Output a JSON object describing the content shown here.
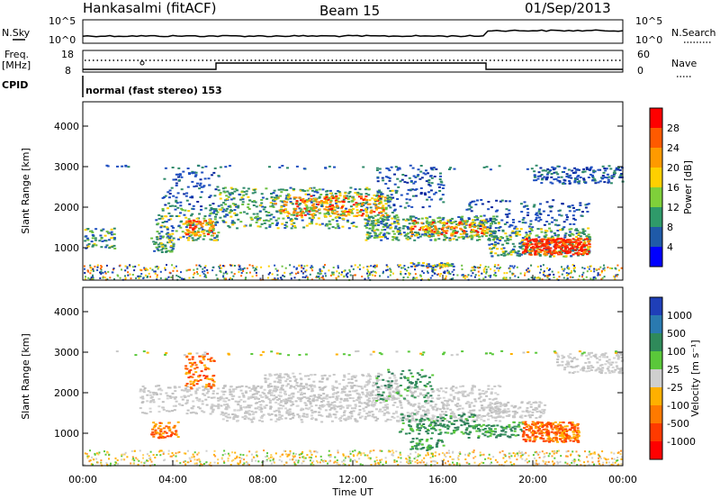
{
  "header": {
    "station": "Hankasalmi (fitACF)",
    "beam": "Beam 15",
    "date": "01/Sep/2013"
  },
  "side_labels": {
    "nsky": "N.Sky",
    "nsearch": "N.Search",
    "freq_line1": "Freq.",
    "freq_line2": "[MHz]",
    "nave": "Nave",
    "cpid": "CPID",
    "nsky_ticks": [
      "10^5",
      "10^0"
    ],
    "nsearch_ticks": [
      "10^5",
      "10^0"
    ],
    "freq_ticks": [
      "18",
      "8"
    ],
    "nave_ticks": [
      "60",
      "0"
    ],
    "cpid_text": "normal (fast stereo) 153"
  },
  "chart_data": [
    {
      "type": "heatmap",
      "name": "power",
      "ylabel": "Slant Range [km]",
      "xlabel": "Time UT",
      "x_ticks": [
        "00:00",
        "04:00",
        "08:00",
        "12:00",
        "16:00",
        "20:00",
        "00:00"
      ],
      "x_range_hours": [
        0,
        24
      ],
      "y_ticks": [
        1000,
        2000,
        3000,
        4000
      ],
      "ylim": [
        200,
        4600
      ],
      "colorbar_label": "Power [dB]",
      "colorbar_ticks": [
        "28",
        "24",
        "20",
        "16",
        "12",
        "8",
        "4"
      ],
      "colorbar_colors": [
        "#ff0000",
        "#ff5a00",
        "#ff9a00",
        "#ffd000",
        "#7fd03a",
        "#2f9a6a",
        "#1f5aa8",
        "#0000ff"
      ],
      "features": [
        {
          "t": [
            4.5,
            5.8
          ],
          "r": [
            1300,
            1700
          ],
          "level": "high"
        },
        {
          "t": [
            8.5,
            13.5
          ],
          "r": [
            1800,
            2300
          ],
          "level": "high"
        },
        {
          "t": [
            14.5,
            18.0
          ],
          "r": [
            1300,
            1700
          ],
          "level": "medium"
        },
        {
          "t": [
            19.5,
            22.5
          ],
          "r": [
            850,
            1250
          ],
          "level": "very high"
        }
      ]
    },
    {
      "type": "heatmap",
      "name": "velocity",
      "ylabel": "Slant Range [km]",
      "xlabel": "Time UT",
      "x_ticks": [
        "00:00",
        "04:00",
        "08:00",
        "12:00",
        "16:00",
        "20:00",
        "00:00"
      ],
      "x_range_hours": [
        0,
        24
      ],
      "y_ticks": [
        1000,
        2000,
        3000,
        4000
      ],
      "ylim": [
        200,
        4600
      ],
      "colorbar_label": "Velocity [m s⁻¹]",
      "colorbar_ticks": [
        "1000",
        "500",
        "100",
        "25",
        "-25",
        "-100",
        "-500",
        "-1000"
      ],
      "colorbar_colors": [
        "#1f3fb8",
        "#2a7ab0",
        "#2f8a5a",
        "#5ac83a",
        "#cfcfcf",
        "#ffb000",
        "#ff7a00",
        "#ff3a00",
        "#ff0000"
      ],
      "features": [
        {
          "t": [
            4.5,
            5.8
          ],
          "r": [
            2100,
            3000
          ],
          "level": "-500"
        },
        {
          "t": [
            3.0,
            4.2
          ],
          "r": [
            900,
            1300
          ],
          "level": "-100"
        },
        {
          "t": [
            8.0,
            18.0
          ],
          "r": [
            1300,
            2200
          ],
          "level": "ground scatter"
        },
        {
          "t": [
            19.5,
            22.0
          ],
          "r": [
            800,
            1300
          ],
          "level": "-500"
        }
      ]
    }
  ],
  "colors": {
    "ground_scatter": "#c8c8c8",
    "axis": "#000000"
  }
}
